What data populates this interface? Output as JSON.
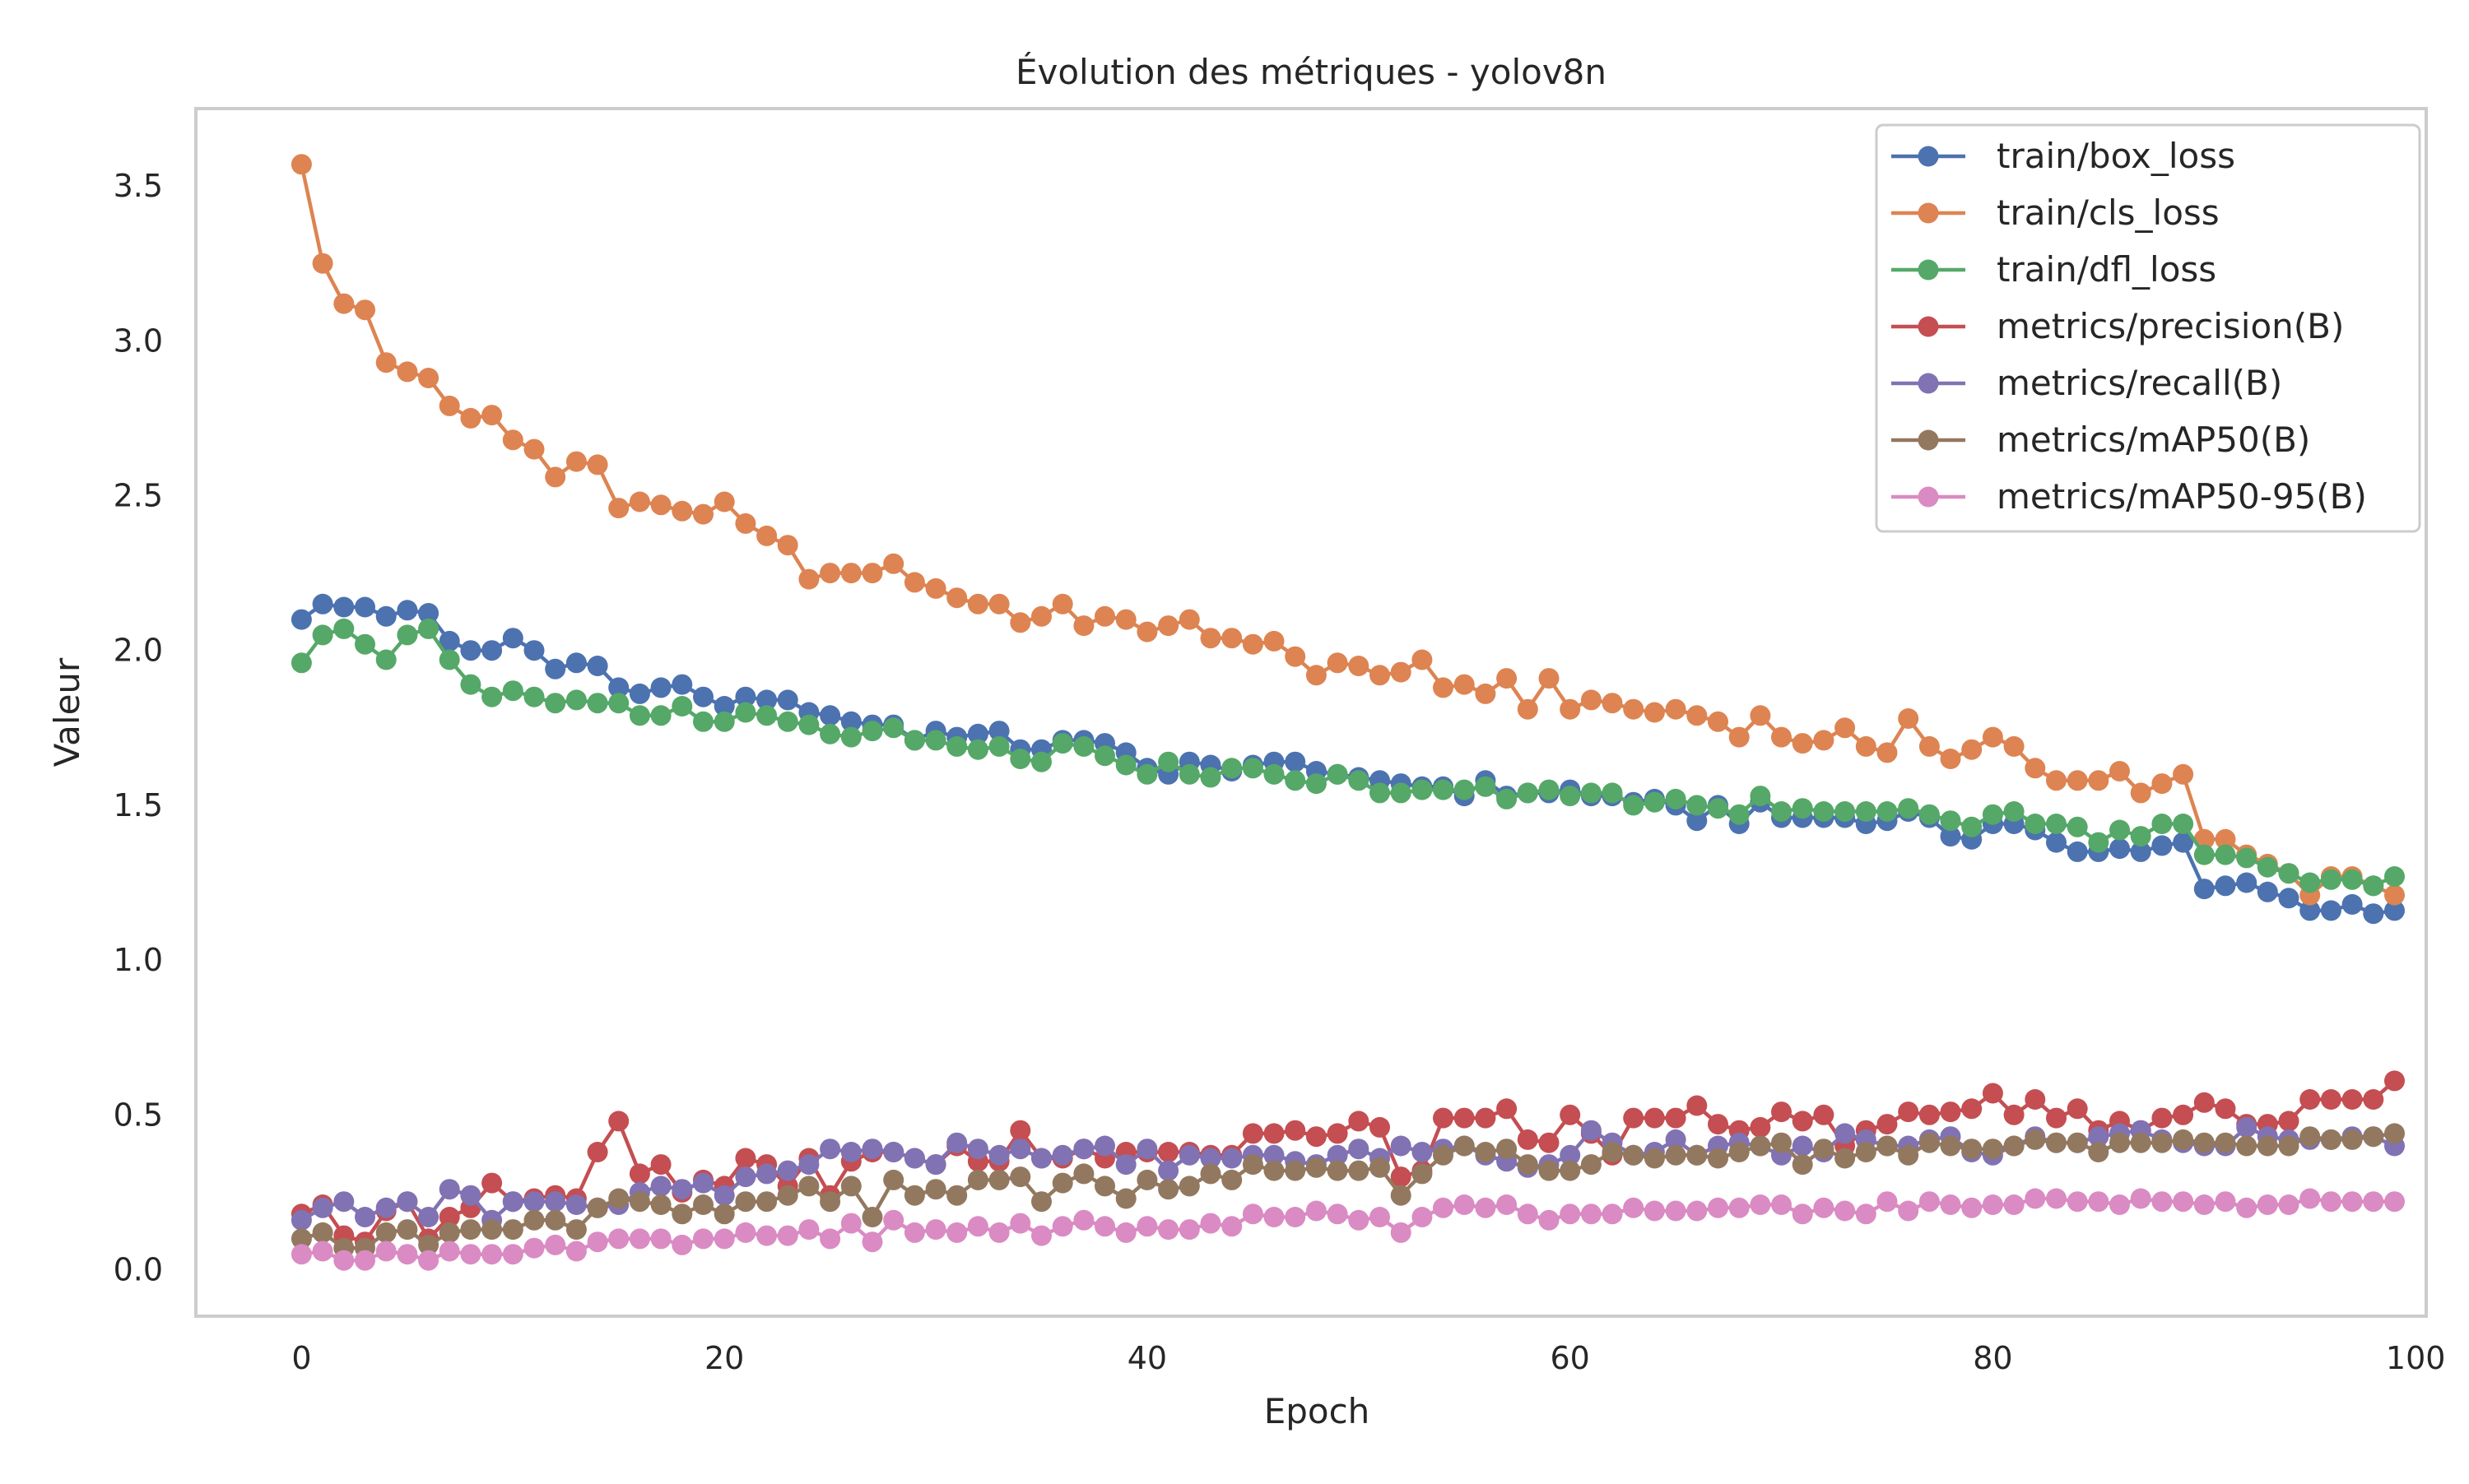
{
  "chart_data": {
    "type": "line",
    "title": "Évolution des métriques - yolov8n",
    "xlabel": "Epoch",
    "ylabel": "Valeur",
    "xlim": [
      -5,
      100.5
    ],
    "ylim": [
      -0.15,
      3.75
    ],
    "x_ticks": [
      0,
      20,
      40,
      60,
      80,
      100
    ],
    "y_ticks": [
      0.0,
      0.5,
      1.0,
      1.5,
      2.0,
      2.5,
      3.0,
      3.5
    ],
    "x_tick_labels": [
      "0",
      "20",
      "40",
      "60",
      "80",
      "100"
    ],
    "y_tick_labels": [
      "0.0",
      "0.5",
      "1.0",
      "1.5",
      "2.0",
      "2.5",
      "3.0",
      "3.5"
    ],
    "grid": false,
    "legend_position": "top-right",
    "x": [
      0,
      1,
      2,
      3,
      4,
      5,
      6,
      7,
      8,
      9,
      10,
      11,
      12,
      13,
      14,
      15,
      16,
      17,
      18,
      19,
      20,
      21,
      22,
      23,
      24,
      25,
      26,
      27,
      28,
      29,
      30,
      31,
      32,
      33,
      34,
      35,
      36,
      37,
      38,
      39,
      40,
      41,
      42,
      43,
      44,
      45,
      46,
      47,
      48,
      49,
      50,
      51,
      52,
      53,
      54,
      55,
      56,
      57,
      58,
      59,
      60,
      61,
      62,
      63,
      64,
      65,
      66,
      67,
      68,
      69,
      70,
      71,
      72,
      73,
      74,
      75,
      76,
      77,
      78,
      79,
      80,
      81,
      82,
      83,
      84,
      85,
      86,
      87,
      88,
      89,
      90,
      91,
      92,
      93,
      94,
      95,
      96,
      97,
      98,
      99
    ],
    "series": [
      {
        "name": "train/box_loss",
        "color": "#4c72b0",
        "values": [
          2.1,
          2.15,
          2.14,
          2.14,
          2.11,
          2.13,
          2.12,
          2.03,
          2.0,
          2.0,
          2.04,
          2.0,
          1.94,
          1.96,
          1.95,
          1.88,
          1.86,
          1.88,
          1.89,
          1.85,
          1.82,
          1.85,
          1.84,
          1.84,
          1.8,
          1.79,
          1.77,
          1.76,
          1.76,
          1.71,
          1.74,
          1.72,
          1.73,
          1.74,
          1.68,
          1.68,
          1.71,
          1.71,
          1.7,
          1.67,
          1.62,
          1.6,
          1.64,
          1.63,
          1.61,
          1.63,
          1.64,
          1.64,
          1.61,
          1.6,
          1.59,
          1.58,
          1.57,
          1.56,
          1.56,
          1.53,
          1.58,
          1.53,
          1.54,
          1.54,
          1.55,
          1.53,
          1.53,
          1.51,
          1.52,
          1.5,
          1.45,
          1.5,
          1.44,
          1.51,
          1.46,
          1.46,
          1.46,
          1.46,
          1.44,
          1.45,
          1.48,
          1.46,
          1.4,
          1.39,
          1.44,
          1.44,
          1.42,
          1.38,
          1.35,
          1.35,
          1.36,
          1.35,
          1.37,
          1.38,
          1.23,
          1.24,
          1.25,
          1.22,
          1.2,
          1.16,
          1.16,
          1.18,
          1.15,
          1.16
        ]
      },
      {
        "name": "train/cls_loss",
        "color": "#dd8452",
        "values": [
          3.57,
          3.25,
          3.12,
          3.1,
          2.93,
          2.9,
          2.88,
          2.79,
          2.75,
          2.76,
          2.68,
          2.65,
          2.56,
          2.61,
          2.6,
          2.46,
          2.48,
          2.47,
          2.45,
          2.44,
          2.48,
          2.41,
          2.37,
          2.34,
          2.23,
          2.25,
          2.25,
          2.25,
          2.28,
          2.22,
          2.2,
          2.17,
          2.15,
          2.15,
          2.09,
          2.11,
          2.15,
          2.08,
          2.11,
          2.1,
          2.06,
          2.08,
          2.1,
          2.04,
          2.04,
          2.02,
          2.03,
          1.98,
          1.92,
          1.96,
          1.95,
          1.92,
          1.93,
          1.97,
          1.88,
          1.89,
          1.86,
          1.91,
          1.81,
          1.91,
          1.81,
          1.84,
          1.83,
          1.81,
          1.8,
          1.81,
          1.79,
          1.77,
          1.72,
          1.79,
          1.72,
          1.7,
          1.71,
          1.75,
          1.69,
          1.67,
          1.78,
          1.69,
          1.65,
          1.68,
          1.72,
          1.69,
          1.62,
          1.58,
          1.58,
          1.58,
          1.61,
          1.54,
          1.57,
          1.6,
          1.39,
          1.39,
          1.34,
          1.31,
          1.28,
          1.21,
          1.27,
          1.27,
          1.24,
          1.21
        ]
      },
      {
        "name": "train/dfl_loss",
        "color": "#55a868",
        "values": [
          1.96,
          2.05,
          2.07,
          2.02,
          1.97,
          2.05,
          2.07,
          1.97,
          1.89,
          1.85,
          1.87,
          1.85,
          1.83,
          1.84,
          1.83,
          1.83,
          1.79,
          1.79,
          1.82,
          1.77,
          1.77,
          1.8,
          1.79,
          1.77,
          1.76,
          1.73,
          1.72,
          1.74,
          1.75,
          1.71,
          1.71,
          1.69,
          1.68,
          1.69,
          1.65,
          1.64,
          1.7,
          1.69,
          1.66,
          1.63,
          1.6,
          1.64,
          1.6,
          1.59,
          1.62,
          1.62,
          1.6,
          1.58,
          1.57,
          1.6,
          1.58,
          1.54,
          1.54,
          1.55,
          1.55,
          1.55,
          1.56,
          1.52,
          1.54,
          1.55,
          1.53,
          1.54,
          1.54,
          1.5,
          1.51,
          1.52,
          1.5,
          1.49,
          1.47,
          1.53,
          1.48,
          1.49,
          1.48,
          1.48,
          1.48,
          1.48,
          1.49,
          1.47,
          1.45,
          1.43,
          1.47,
          1.48,
          1.44,
          1.44,
          1.43,
          1.38,
          1.42,
          1.4,
          1.44,
          1.44,
          1.34,
          1.34,
          1.33,
          1.3,
          1.28,
          1.25,
          1.26,
          1.26,
          1.24,
          1.27
        ]
      },
      {
        "name": "metrics/precision(B)",
        "color": "#c44e52",
        "values": [
          0.18,
          0.21,
          0.11,
          0.09,
          0.19,
          0.22,
          0.1,
          0.17,
          0.2,
          0.28,
          0.22,
          0.23,
          0.24,
          0.23,
          0.38,
          0.48,
          0.31,
          0.34,
          0.25,
          0.29,
          0.27,
          0.36,
          0.34,
          0.27,
          0.36,
          0.24,
          0.35,
          0.38,
          0.38,
          0.36,
          0.34,
          0.4,
          0.35,
          0.35,
          0.45,
          0.36,
          0.36,
          0.39,
          0.36,
          0.38,
          0.38,
          0.38,
          0.38,
          0.37,
          0.37,
          0.44,
          0.44,
          0.45,
          0.43,
          0.44,
          0.48,
          0.46,
          0.3,
          0.32,
          0.49,
          0.49,
          0.49,
          0.52,
          0.42,
          0.41,
          0.5,
          0.44,
          0.37,
          0.49,
          0.49,
          0.49,
          0.53,
          0.47,
          0.45,
          0.46,
          0.51,
          0.48,
          0.5,
          0.4,
          0.45,
          0.47,
          0.51,
          0.5,
          0.51,
          0.52,
          0.57,
          0.5,
          0.55,
          0.49,
          0.52,
          0.45,
          0.48,
          0.45,
          0.49,
          0.5,
          0.54,
          0.52,
          0.47,
          0.47,
          0.48,
          0.55,
          0.55,
          0.55,
          0.55,
          0.61
        ]
      },
      {
        "name": "metrics/recall(B)",
        "color": "#8172b3",
        "values": [
          0.16,
          0.2,
          0.22,
          0.17,
          0.2,
          0.22,
          0.17,
          0.26,
          0.24,
          0.16,
          0.22,
          0.22,
          0.22,
          0.21,
          0.2,
          0.21,
          0.25,
          0.27,
          0.26,
          0.28,
          0.24,
          0.3,
          0.31,
          0.32,
          0.34,
          0.39,
          0.38,
          0.39,
          0.38,
          0.36,
          0.34,
          0.41,
          0.39,
          0.37,
          0.39,
          0.36,
          0.37,
          0.39,
          0.4,
          0.34,
          0.39,
          0.32,
          0.37,
          0.36,
          0.36,
          0.37,
          0.37,
          0.35,
          0.34,
          0.37,
          0.39,
          0.36,
          0.4,
          0.38,
          0.39,
          0.4,
          0.37,
          0.35,
          0.33,
          0.34,
          0.37,
          0.45,
          0.41,
          0.37,
          0.38,
          0.42,
          0.37,
          0.4,
          0.41,
          0.4,
          0.37,
          0.4,
          0.38,
          0.44,
          0.42,
          0.4,
          0.4,
          0.42,
          0.43,
          0.38,
          0.37,
          0.4,
          0.43,
          0.41,
          0.41,
          0.43,
          0.44,
          0.45,
          0.42,
          0.41,
          0.4,
          0.4,
          0.46,
          0.43,
          0.42,
          0.42,
          0.42,
          0.43,
          0.43,
          0.4
        ]
      },
      {
        "name": "metrics/mAP50(B)",
        "color": "#937860",
        "values": [
          0.1,
          0.12,
          0.07,
          0.07,
          0.12,
          0.13,
          0.08,
          0.12,
          0.13,
          0.13,
          0.13,
          0.16,
          0.16,
          0.13,
          0.2,
          0.23,
          0.22,
          0.21,
          0.18,
          0.21,
          0.18,
          0.22,
          0.22,
          0.24,
          0.27,
          0.22,
          0.27,
          0.17,
          0.29,
          0.24,
          0.26,
          0.24,
          0.29,
          0.29,
          0.3,
          0.22,
          0.28,
          0.31,
          0.27,
          0.23,
          0.29,
          0.26,
          0.27,
          0.31,
          0.29,
          0.34,
          0.32,
          0.32,
          0.33,
          0.32,
          0.32,
          0.33,
          0.24,
          0.31,
          0.37,
          0.4,
          0.38,
          0.39,
          0.34,
          0.32,
          0.32,
          0.34,
          0.38,
          0.37,
          0.36,
          0.37,
          0.37,
          0.36,
          0.38,
          0.4,
          0.41,
          0.34,
          0.39,
          0.36,
          0.38,
          0.4,
          0.37,
          0.41,
          0.4,
          0.39,
          0.39,
          0.4,
          0.42,
          0.41,
          0.41,
          0.38,
          0.41,
          0.41,
          0.41,
          0.42,
          0.41,
          0.41,
          0.4,
          0.4,
          0.4,
          0.43,
          0.42,
          0.42,
          0.43,
          0.44
        ]
      },
      {
        "name": "metrics/mAP50-95(B)",
        "color": "#da8bc3",
        "values": [
          0.05,
          0.06,
          0.03,
          0.03,
          0.06,
          0.05,
          0.03,
          0.06,
          0.05,
          0.05,
          0.05,
          0.07,
          0.08,
          0.06,
          0.09,
          0.1,
          0.1,
          0.1,
          0.08,
          0.1,
          0.1,
          0.12,
          0.11,
          0.11,
          0.13,
          0.1,
          0.15,
          0.09,
          0.16,
          0.12,
          0.13,
          0.12,
          0.14,
          0.12,
          0.15,
          0.11,
          0.14,
          0.16,
          0.14,
          0.12,
          0.14,
          0.13,
          0.13,
          0.15,
          0.14,
          0.18,
          0.17,
          0.17,
          0.19,
          0.18,
          0.16,
          0.17,
          0.12,
          0.17,
          0.2,
          0.21,
          0.2,
          0.21,
          0.18,
          0.16,
          0.18,
          0.18,
          0.18,
          0.2,
          0.19,
          0.19,
          0.19,
          0.2,
          0.2,
          0.21,
          0.21,
          0.18,
          0.2,
          0.19,
          0.18,
          0.22,
          0.19,
          0.22,
          0.21,
          0.2,
          0.21,
          0.21,
          0.23,
          0.23,
          0.22,
          0.22,
          0.21,
          0.23,
          0.22,
          0.22,
          0.21,
          0.22,
          0.2,
          0.21,
          0.21,
          0.23,
          0.22,
          0.22,
          0.22,
          0.22
        ]
      }
    ]
  }
}
